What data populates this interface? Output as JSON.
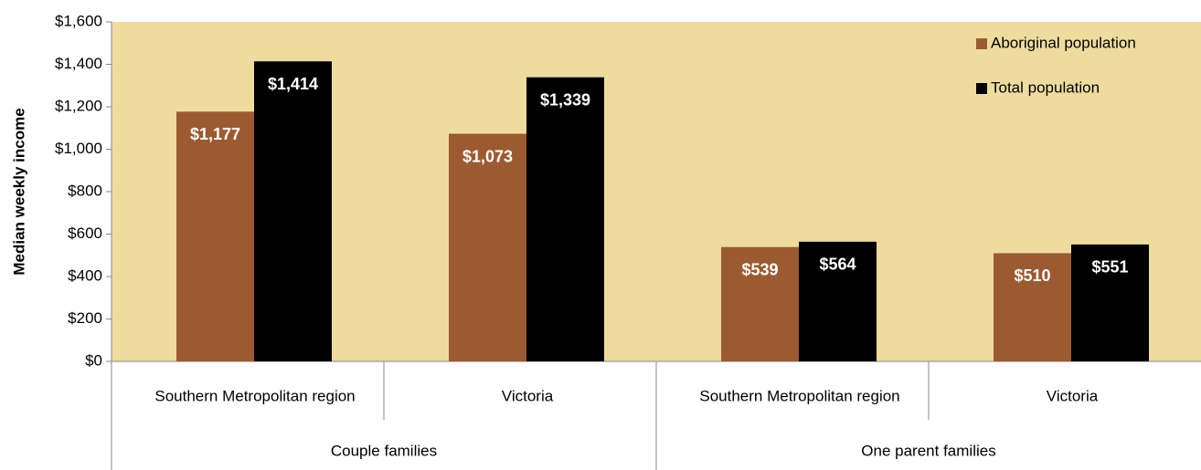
{
  "chart_data": {
    "type": "bar",
    "y_axis_label": "Median weekly income",
    "categories": [
      "Southern Metropolitan region",
      "Victoria",
      "Southern Metropolitan region",
      "Victoria"
    ],
    "groups": [
      {
        "label": "Couple families",
        "size": 2
      },
      {
        "label": "One parent families",
        "size": 2
      }
    ],
    "series": [
      {
        "name": "Aboriginal population",
        "color": "#9c5a31",
        "values": [
          1177,
          1073,
          539,
          510
        ],
        "value_labels": [
          "$1,177",
          "$1,073",
          "$539",
          "$510"
        ]
      },
      {
        "name": "Total population",
        "color": "#000000",
        "values": [
          1414,
          1339,
          564,
          551
        ],
        "value_labels": [
          "$1,414",
          "$1,339",
          "$564",
          "$551"
        ]
      }
    ],
    "ylim": [
      0,
      1600
    ],
    "yticks": [
      {
        "value": 0,
        "label": "$0"
      },
      {
        "value": 200,
        "label": "$200"
      },
      {
        "value": 400,
        "label": "$400"
      },
      {
        "value": 600,
        "label": "$600"
      },
      {
        "value": 800,
        "label": "$800"
      },
      {
        "value": 1000,
        "label": "$1,000"
      },
      {
        "value": 1200,
        "label": "$1,200"
      },
      {
        "value": 1400,
        "label": "$1,400"
      },
      {
        "value": 1600,
        "label": "$1,600"
      }
    ],
    "plot_background": "#eedc9f",
    "legend": "top-right"
  }
}
